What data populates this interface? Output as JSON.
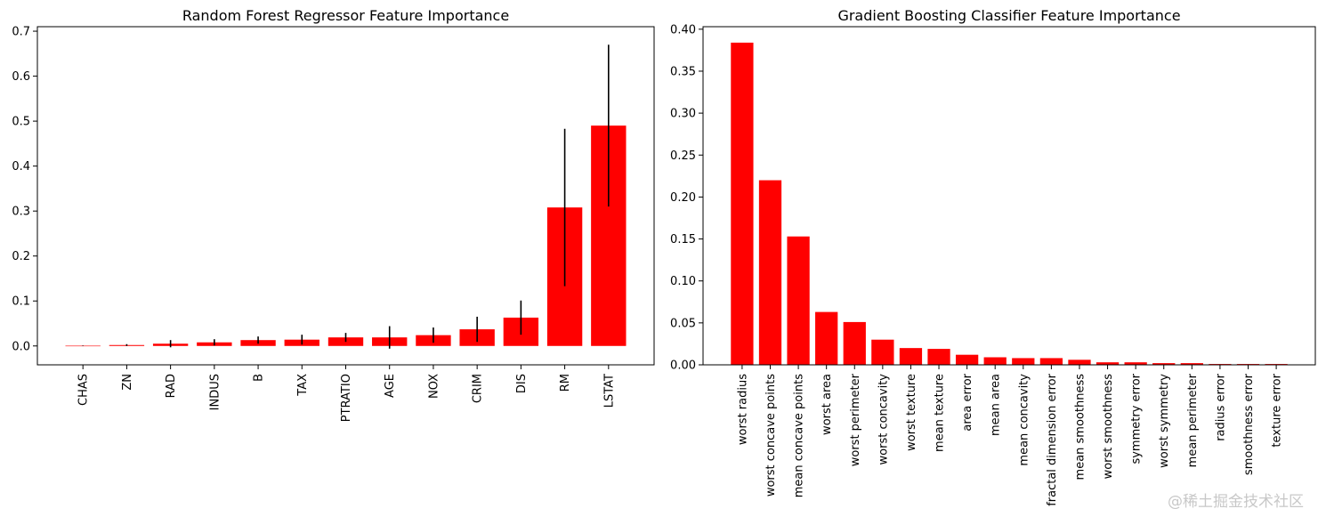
{
  "chart_data": [
    {
      "type": "bar",
      "title": "Random Forest Regressor Feature Importance",
      "xlabel": "",
      "ylabel": "",
      "categories": [
        "CHAS",
        "ZN",
        "RAD",
        "INDUS",
        "B",
        "TAX",
        "PTRATIO",
        "AGE",
        "NOX",
        "CRIM",
        "DIS",
        "RM",
        "LSTAT"
      ],
      "values": [
        0.0005,
        0.002,
        0.005,
        0.008,
        0.013,
        0.014,
        0.019,
        0.019,
        0.024,
        0.037,
        0.063,
        0.308,
        0.49
      ],
      "error": [
        0.0005,
        0.002,
        0.008,
        0.007,
        0.008,
        0.011,
        0.01,
        0.025,
        0.017,
        0.028,
        0.038,
        0.175,
        0.18
      ],
      "ylim": [
        -0.042,
        0.71
      ],
      "yticks": [
        0.0,
        0.1,
        0.2,
        0.3,
        0.4,
        0.5,
        0.6,
        0.7
      ],
      "ytick_labels": [
        "0.0",
        "0.1",
        "0.2",
        "0.3",
        "0.4",
        "0.5",
        "0.6",
        "0.7"
      ],
      "bar_color": "#ff0000",
      "error_color": "#000000",
      "grid": false
    },
    {
      "type": "bar",
      "title": "Gradient Boosting Classifier Feature Importance",
      "xlabel": "",
      "ylabel": "",
      "categories": [
        "worst radius",
        "worst concave points",
        "mean concave points",
        "worst area",
        "worst perimeter",
        "worst concavity",
        "worst texture",
        "mean texture",
        "area error",
        "mean area",
        "mean concavity",
        "fractal dimension error",
        "mean smoothness",
        "worst smoothness",
        "symmetry error",
        "worst symmetry",
        "mean perimeter",
        "radius error",
        "smoothness error",
        "texture error"
      ],
      "values": [
        0.384,
        0.22,
        0.153,
        0.063,
        0.051,
        0.03,
        0.02,
        0.019,
        0.012,
        0.009,
        0.008,
        0.008,
        0.006,
        0.003,
        0.003,
        0.002,
        0.002,
        0.001,
        0.001,
        0.001
      ],
      "ylim": [
        0,
        0.403
      ],
      "yticks": [
        0.0,
        0.05,
        0.1,
        0.15,
        0.2,
        0.25,
        0.3,
        0.35,
        0.4
      ],
      "ytick_labels": [
        "0.00",
        "0.05",
        "0.10",
        "0.15",
        "0.20",
        "0.25",
        "0.30",
        "0.35",
        "0.40"
      ],
      "bar_color": "#ff0000",
      "grid": false
    }
  ],
  "watermark": "@稀土掘金技术社区"
}
